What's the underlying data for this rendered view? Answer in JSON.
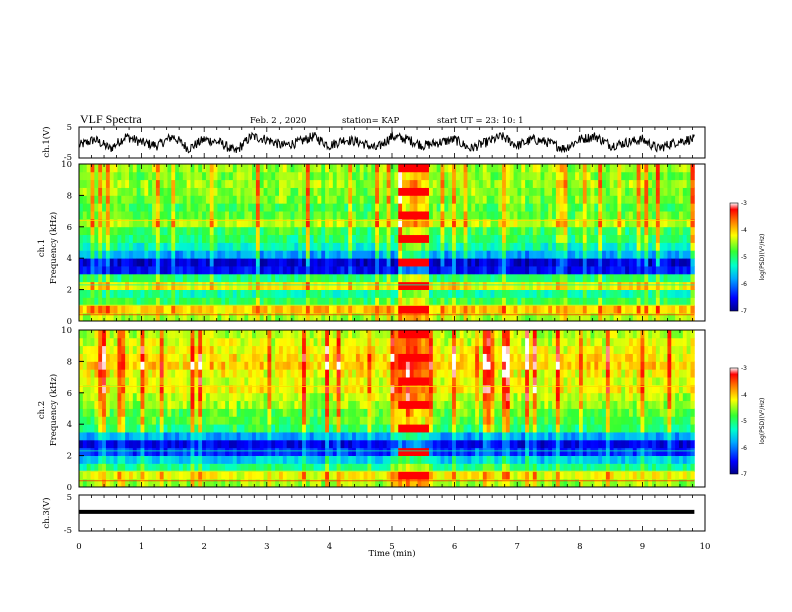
{
  "header": {
    "title": "VLF Spectra",
    "date": "Feb. 2 , 2020",
    "station": "station= KAP",
    "start": "start UT =  23: 10: 1"
  },
  "chart_data": [
    {
      "type": "line",
      "panel": "ch1-waveform",
      "ylabel": "ch.1(V)",
      "ylim": [
        -5,
        5
      ],
      "yticks": [
        "5",
        "-5"
      ],
      "xlim": [
        0,
        10
      ],
      "x_extent_min": 9.83,
      "note_values": "noisy waveform oscillating roughly between -4 and 4 V",
      "x": [
        0,
        0.25,
        0.5,
        0.75,
        1,
        1.25,
        1.5,
        1.75,
        2,
        2.25,
        2.5,
        2.75,
        3,
        3.25,
        3.5,
        3.75,
        4,
        4.25,
        4.5,
        4.75,
        5,
        5.25,
        5.5,
        5.75,
        6,
        6.25,
        6.5,
        6.75,
        7,
        7.25,
        7.5,
        7.75,
        8,
        8.25,
        8.5,
        8.75,
        9,
        9.25,
        9.5,
        9.75
      ],
      "y": [
        -1,
        1,
        -2,
        2,
        0,
        -1,
        2,
        -2,
        1,
        0,
        -3,
        2,
        1,
        -1,
        0,
        2,
        -1,
        1,
        0,
        -2,
        2,
        1,
        -1,
        0,
        1,
        -2,
        0,
        2,
        -1,
        1,
        0,
        -2,
        1,
        2,
        -1,
        0,
        1,
        -2,
        0,
        1
      ]
    },
    {
      "type": "heatmap",
      "panel": "ch1-spectrogram",
      "ylabel": "ch.1\nFrequency (kHz)",
      "ylabel_lines": [
        "ch.1",
        "Frequency (kHz)"
      ],
      "ylim": [
        0,
        10
      ],
      "yticks": [
        "0",
        "2",
        "4",
        "6",
        "8",
        "10"
      ],
      "xlim": [
        0,
        10
      ],
      "x_extent_min": 9.83,
      "burst_min": [
        5.1,
        5.6
      ],
      "colorbar": {
        "label": "log(PSD)(V²/Hz)",
        "ticks": [
          "-3",
          "-4",
          "-5",
          "-6",
          "-7"
        ],
        "range": [
          -7,
          -3
        ]
      },
      "freq_khz": [
        0.25,
        0.75,
        1.25,
        1.75,
        2.25,
        2.75,
        3.25,
        3.75,
        4.25,
        4.75,
        5.25,
        5.75,
        6.25,
        6.75,
        7.25,
        7.75,
        8.25,
        8.75,
        9.25,
        9.75
      ],
      "log_psd": [
        -4.5,
        -4.0,
        -4.9,
        -5.2,
        -4.2,
        -5.0,
        -6.5,
        -6.7,
        -5.8,
        -5.3,
        -5.0,
        -4.9,
        -4.4,
        -4.7,
        -4.8,
        -4.6,
        -4.6,
        -4.5,
        -4.6,
        -4.5
      ]
    },
    {
      "type": "heatmap",
      "panel": "ch2-spectrogram",
      "ylabel": "ch.2\nFrequency (kHz)",
      "ylabel_lines": [
        "ch.2",
        "Frequency (kHz)"
      ],
      "ylim": [
        0,
        10
      ],
      "yticks": [
        "0",
        "2",
        "4",
        "6",
        "8",
        "10"
      ],
      "xlim": [
        0,
        10
      ],
      "x_extent_min": 9.83,
      "burst_min": [
        5.1,
        5.6
      ],
      "colorbar": {
        "label": "log(PSD)(V²/Hz)",
        "ticks": [
          "-3",
          "-4",
          "-5",
          "-6",
          "-7"
        ],
        "range": [
          -7,
          -3
        ]
      },
      "freq_khz": [
        0.25,
        0.75,
        1.25,
        1.75,
        2.25,
        2.75,
        3.25,
        3.75,
        4.25,
        4.75,
        5.25,
        5.75,
        6.25,
        6.75,
        7.25,
        7.75,
        8.25,
        8.75,
        9.25,
        9.75
      ],
      "log_psd": [
        -4.5,
        -4.2,
        -5.1,
        -5.6,
        -6.3,
        -6.6,
        -5.8,
        -5.0,
        -4.8,
        -4.7,
        -4.5,
        -4.4,
        -4.2,
        -4.3,
        -4.2,
        -4.0,
        -4.1,
        -4.2,
        -4.3,
        -4.4
      ]
    },
    {
      "type": "line",
      "panel": "ch3-waveform",
      "ylabel": "ch.3(V)",
      "ylim": [
        -5,
        5
      ],
      "yticks": [
        "5",
        "-5"
      ],
      "xlim": [
        0,
        10
      ],
      "xlabel": "Time  (min)",
      "xticks": [
        "0",
        "1",
        "2",
        "3",
        "4",
        "5",
        "6",
        "7",
        "8",
        "9",
        "10"
      ],
      "x": [
        0,
        9.83
      ],
      "y": [
        0.3,
        0.3
      ]
    }
  ]
}
